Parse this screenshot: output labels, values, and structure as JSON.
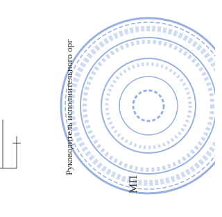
{
  "signature": {
    "position": "Руководитель исполнительного орг",
    "stamp_mark": "МП"
  }
}
